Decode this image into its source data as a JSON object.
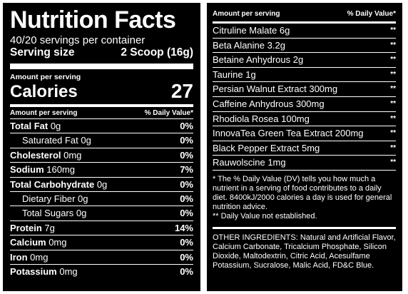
{
  "left": {
    "title": "Nutrition Facts",
    "servings": "40/20 servings per container",
    "serving_size_label": "Serving size",
    "serving_size_value": "2 Scoop (16g)",
    "amount_per_serving": "Amount per serving",
    "calories_label": "Calories",
    "calories_value": "27",
    "table_header_left": "Amount per serving",
    "table_header_right": "% Daily Value*",
    "rows": [
      {
        "name": "Total Fat",
        "amount": " 0g",
        "dv": "0%",
        "bold": true,
        "indent": false
      },
      {
        "name": "Saturated Fat",
        "amount": " 0g",
        "dv": "0%",
        "bold": false,
        "indent": true
      },
      {
        "name": "Cholesterol",
        "amount": " 0mg",
        "dv": "0%",
        "bold": true,
        "indent": false
      },
      {
        "name": "Sodium",
        "amount": " 160mg",
        "dv": "7%",
        "bold": true,
        "indent": false
      },
      {
        "name": "Total Carbohydrate",
        "amount": " 0g",
        "dv": "0%",
        "bold": true,
        "indent": false
      },
      {
        "name": "Dietary Fiber",
        "amount": " 0g",
        "dv": "0%",
        "bold": false,
        "indent": true
      },
      {
        "name": "Total Sugars",
        "amount": " 0g",
        "dv": "0%",
        "bold": false,
        "indent": true
      },
      {
        "name": "Protein",
        "amount": " 7g",
        "dv": "14%",
        "bold": true,
        "indent": false
      },
      {
        "name": "Calcium",
        "amount": " 0mg",
        "dv": "0%",
        "bold": true,
        "indent": false
      },
      {
        "name": "Iron",
        "amount": " 0mg",
        "dv": "0%",
        "bold": true,
        "indent": false
      },
      {
        "name": "Potassium",
        "amount": " 0mg",
        "dv": "0%",
        "bold": true,
        "indent": false
      }
    ]
  },
  "right": {
    "header_left": "Amount per serving",
    "header_right": "% Daily Value*",
    "rows": [
      {
        "name": "Citruline Malate 6g",
        "dv": "**"
      },
      {
        "name": "Beta Alanine 3.2g",
        "dv": "**"
      },
      {
        "name": "Betaine Anhydrous 2g",
        "dv": "**"
      },
      {
        "name": "Taurine 1g",
        "dv": "**"
      },
      {
        "name": "Persian Walnut Extract 300mg",
        "dv": "**"
      },
      {
        "name": "Caffeine Anhydrous 300mg",
        "dv": "**"
      },
      {
        "name": "Rhodiola Rosea 100mg",
        "dv": "**"
      },
      {
        "name": "InnovaTea Green Tea Extract 200mg",
        "dv": "**"
      },
      {
        "name": "Black Pepper Extract 5mg",
        "dv": "**"
      },
      {
        "name": "Rauwolscine 1mg",
        "dv": "**"
      }
    ],
    "footnote_dv": "* The % Daily Value (DV) tells you how much a nutrient in a serving of food contributes to a daily diet. 8400kJ/2000 calories a day is used for general nutrition advice.",
    "footnote_na": "** Daily Value not established.",
    "ingredients": "OTHER INGREDIENTS: Natural and Artificial Flavor, Calcium Carbonate, Tricalcium Phosphate, Silicon Dioxide, Maltodextrin, Citric Acid, Acesulfame Potassium, Sucralose, Malic Acid, FD&C Blue."
  }
}
